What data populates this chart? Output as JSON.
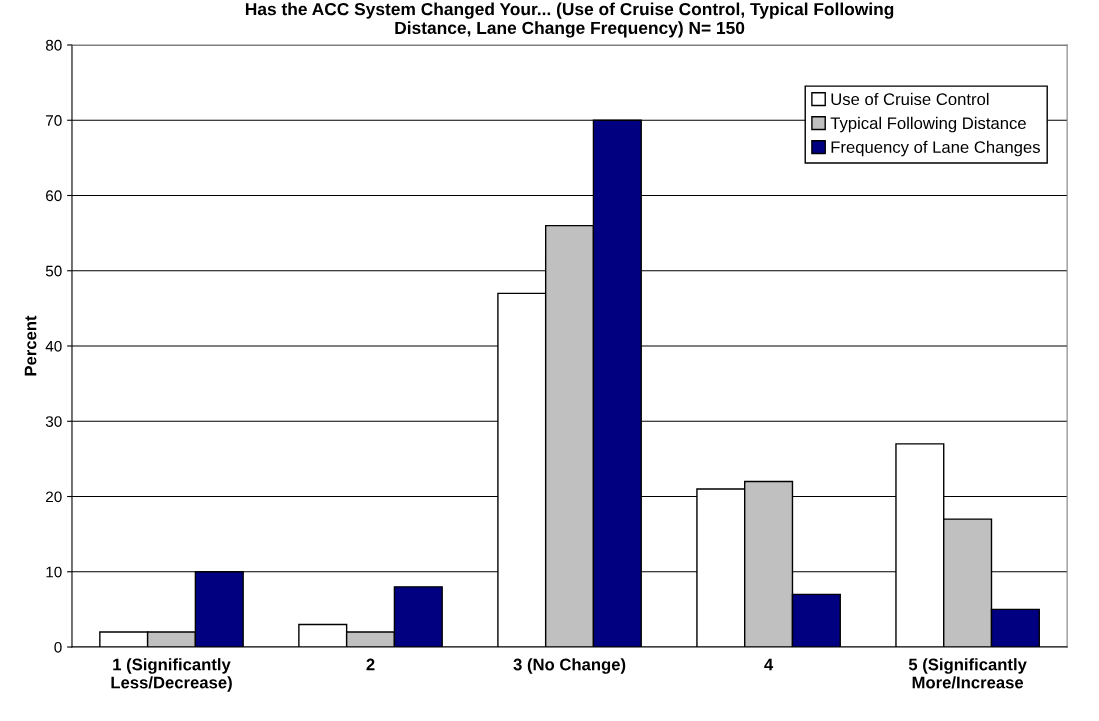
{
  "chart_data": {
    "type": "bar",
    "title": "Has the ACC System Changed Your... (Use of Cruise Control, Typical Following\nDistance, Lane Change Frequency) N= 150",
    "ylabel": "Percent",
    "categories": [
      "1 (Significantly\nLess/Decrease)",
      "2",
      "3 (No Change)",
      "4",
      "5 (Significantly\nMore/Increase"
    ],
    "series": [
      {
        "name": "Use of Cruise Control",
        "color": "#ffffff",
        "values": [
          2,
          3,
          47,
          21,
          27
        ]
      },
      {
        "name": "Typical Following Distance",
        "color": "#c0c0c0",
        "values": [
          2,
          2,
          56,
          22,
          17
        ]
      },
      {
        "name": "Frequency of Lane Changes",
        "color": "#000080",
        "values": [
          10,
          8,
          70,
          7,
          5
        ]
      }
    ],
    "ylim": [
      0,
      80
    ],
    "yticks": [
      0,
      10,
      20,
      30,
      40,
      50,
      60,
      70,
      80
    ],
    "grid": "y",
    "legend": "top right"
  }
}
